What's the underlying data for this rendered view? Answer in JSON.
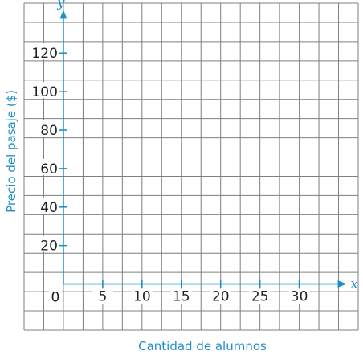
{
  "chart_data": {
    "type": "scatter",
    "title": "",
    "xlabel": "Cantidad de alumnos",
    "ylabel": "Precio del pasaje ($)",
    "x_axis_letter": "x",
    "y_axis_letter": "y",
    "xlim": [
      0,
      35
    ],
    "ylim": [
      0,
      140
    ],
    "x_ticks": [
      5,
      10,
      15,
      20,
      25,
      30
    ],
    "y_ticks": [
      20,
      40,
      60,
      80,
      100,
      120
    ],
    "origin_label": "0",
    "grid": true,
    "series": [],
    "axis_color": "#1f8fc9"
  }
}
